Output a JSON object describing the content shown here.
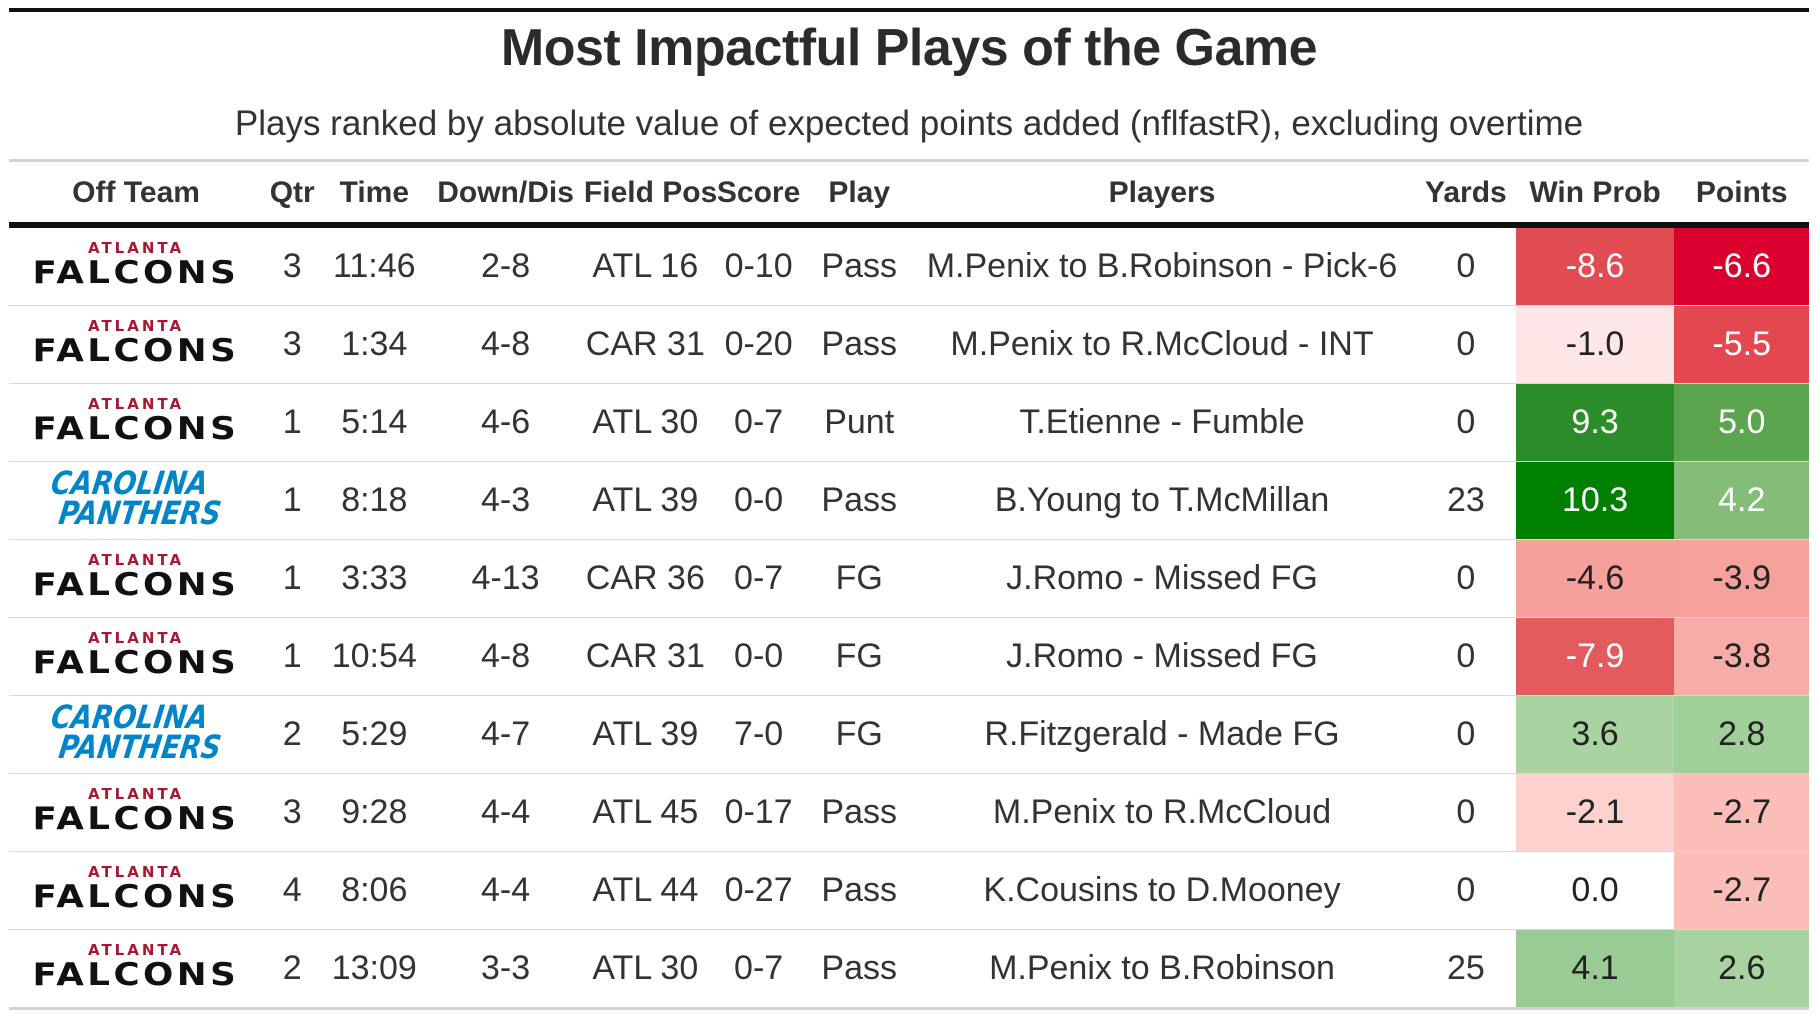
{
  "title": "Most Impactful Plays of the Game",
  "subtitle": "Plays ranked by absolute value of expected points added (nflfastR), excluding overtime",
  "columns": [
    "Off Team",
    "Qtr",
    "Time",
    "Down/Dis",
    "Field Pos",
    "Score",
    "Play",
    "Players",
    "Yards",
    "Win Prob",
    "Points"
  ],
  "colors": {
    "win_prob": [
      "#e04c52",
      "#fde6e5",
      "#2a8d2a",
      "#008000",
      "#f6a09b",
      "#e45b5e",
      "#a9d4a2",
      "#fdd2ce",
      "#ffffff",
      "#9bcb94"
    ],
    "points": [
      "#db002e",
      "#e3474f",
      "#5ca54f",
      "#83bd78",
      "#f6a19c",
      "#f8aca7",
      "#a1cf99",
      "#fbbdb8",
      "#fbbdb8",
      "#a8d3a1"
    ]
  },
  "rows": [
    {
      "team": "Falcons",
      "logo_line1": "ATLANTA",
      "logo_line2": "FALCONS",
      "qtr": "3",
      "time": "11:46",
      "down": "2-8",
      "field": "ATL 16",
      "score": "0-10",
      "play": "Pass",
      "players": "M.Penix to B.Robinson - Pick-6",
      "yards": "0",
      "wp": "-8.6",
      "pts": "-6.6"
    },
    {
      "team": "Falcons",
      "logo_line1": "ATLANTA",
      "logo_line2": "FALCONS",
      "qtr": "3",
      "time": "1:34",
      "down": "4-8",
      "field": "CAR 31",
      "score": "0-20",
      "play": "Pass",
      "players": "M.Penix to R.McCloud - INT",
      "yards": "0",
      "wp": "-1.0",
      "pts": "-5.5"
    },
    {
      "team": "Falcons",
      "logo_line1": "ATLANTA",
      "logo_line2": "FALCONS",
      "qtr": "1",
      "time": "5:14",
      "down": "4-6",
      "field": "ATL 30",
      "score": "0-7",
      "play": "Punt",
      "players": "T.Etienne - Fumble",
      "yards": "0",
      "wp": "9.3",
      "pts": "5.0"
    },
    {
      "team": "Panthers",
      "logo_line1": "CAROLINA",
      "logo_line2": "PANTHERS",
      "qtr": "1",
      "time": "8:18",
      "down": "4-3",
      "field": "ATL 39",
      "score": "0-0",
      "play": "Pass",
      "players": "B.Young to T.McMillan",
      "yards": "23",
      "wp": "10.3",
      "pts": "4.2"
    },
    {
      "team": "Falcons",
      "logo_line1": "ATLANTA",
      "logo_line2": "FALCONS",
      "qtr": "1",
      "time": "3:33",
      "down": "4-13",
      "field": "CAR 36",
      "score": "0-7",
      "play": "FG",
      "players": "J.Romo - Missed FG",
      "yards": "0",
      "wp": "-4.6",
      "pts": "-3.9"
    },
    {
      "team": "Falcons",
      "logo_line1": "ATLANTA",
      "logo_line2": "FALCONS",
      "qtr": "1",
      "time": "10:54",
      "down": "4-8",
      "field": "CAR 31",
      "score": "0-0",
      "play": "FG",
      "players": "J.Romo - Missed FG",
      "yards": "0",
      "wp": "-7.9",
      "pts": "-3.8"
    },
    {
      "team": "Panthers",
      "logo_line1": "CAROLINA",
      "logo_line2": "PANTHERS",
      "qtr": "2",
      "time": "5:29",
      "down": "4-7",
      "field": "ATL 39",
      "score": "7-0",
      "play": "FG",
      "players": "R.Fitzgerald - Made FG",
      "yards": "0",
      "wp": "3.6",
      "pts": "2.8"
    },
    {
      "team": "Falcons",
      "logo_line1": "ATLANTA",
      "logo_line2": "FALCONS",
      "qtr": "3",
      "time": "9:28",
      "down": "4-4",
      "field": "ATL 45",
      "score": "0-17",
      "play": "Pass",
      "players": "M.Penix to R.McCloud",
      "yards": "0",
      "wp": "-2.1",
      "pts": "-2.7"
    },
    {
      "team": "Falcons",
      "logo_line1": "ATLANTA",
      "logo_line2": "FALCONS",
      "qtr": "4",
      "time": "8:06",
      "down": "4-4",
      "field": "ATL 44",
      "score": "0-27",
      "play": "Pass",
      "players": "K.Cousins to D.Mooney",
      "yards": "0",
      "wp": "0.0",
      "pts": "-2.7"
    },
    {
      "team": "Falcons",
      "logo_line1": "ATLANTA",
      "logo_line2": "FALCONS",
      "qtr": "2",
      "time": "13:09",
      "down": "3-3",
      "field": "ATL 30",
      "score": "0-7",
      "play": "Pass",
      "players": "M.Penix to B.Robinson",
      "yards": "25",
      "wp": "4.1",
      "pts": "2.6"
    }
  ]
}
